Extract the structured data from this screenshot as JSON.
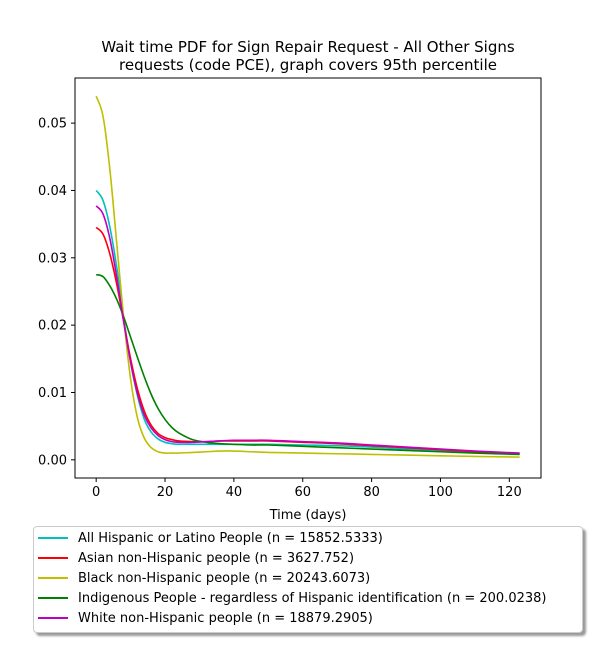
{
  "chart_data": {
    "type": "line",
    "title": "Wait time PDF for Sign Repair Request - All Other Signs requests (code PCE), graph covers 95th percentile",
    "title_lines": [
      "Wait time PDF for Sign Repair Request - All Other Signs",
      "requests (code PCE), graph covers 95th percentile"
    ],
    "xlabel": "Time (days)",
    "ylabel": "",
    "xlim": [
      -6.15,
      129.2
    ],
    "ylim": [
      -0.0027,
      0.0567
    ],
    "xticks": [
      0,
      20,
      40,
      60,
      80,
      100,
      120
    ],
    "yticks": [
      0.0,
      0.01,
      0.02,
      0.03,
      0.04,
      0.05
    ],
    "ytick_labels": [
      "0.00",
      "0.01",
      "0.02",
      "0.03",
      "0.04",
      "0.05"
    ],
    "grid": false,
    "legend_position": "below",
    "series": [
      {
        "name": "All Hispanic or Latino People (n = 15852.5333)",
        "color": "#00bfbf",
        "x": [
          0,
          2,
          4,
          6,
          8,
          10,
          12,
          14,
          16,
          18,
          20,
          22,
          24,
          28,
          32,
          36,
          40,
          45,
          50,
          60,
          70,
          80,
          90,
          100,
          110,
          123
        ],
        "y": [
          0.04,
          0.0385,
          0.0345,
          0.0285,
          0.021,
          0.0145,
          0.0095,
          0.006,
          0.0041,
          0.0031,
          0.0026,
          0.0024,
          0.0023,
          0.0023,
          0.0023,
          0.0023,
          0.0023,
          0.0023,
          0.0023,
          0.0022,
          0.0021,
          0.0019,
          0.0016,
          0.0014,
          0.0012,
          0.0009
        ]
      },
      {
        "name": "Asian non-Hispanic people (n = 3627.752)",
        "color": "#ff0000",
        "x": [
          0,
          2,
          4,
          6,
          8,
          10,
          12,
          14,
          16,
          18,
          20,
          22,
          24,
          28,
          32,
          36,
          40,
          45,
          50,
          60,
          70,
          80,
          90,
          100,
          110,
          123
        ],
        "y": [
          0.0345,
          0.0335,
          0.0305,
          0.026,
          0.0205,
          0.015,
          0.0105,
          0.0072,
          0.0051,
          0.0039,
          0.0033,
          0.003,
          0.0028,
          0.0027,
          0.0027,
          0.0028,
          0.0028,
          0.0028,
          0.0028,
          0.0026,
          0.0024,
          0.0021,
          0.0018,
          0.0015,
          0.0012,
          0.0009
        ]
      },
      {
        "name": "Black non-Hispanic people (n = 20243.6073)",
        "color": "#bfbf00",
        "x": [
          0,
          2,
          4,
          6,
          8,
          10,
          12,
          14,
          16,
          18,
          20,
          22,
          24,
          28,
          32,
          36,
          40,
          45,
          50,
          60,
          70,
          80,
          90,
          100,
          110,
          123
        ],
        "y": [
          0.054,
          0.051,
          0.043,
          0.032,
          0.021,
          0.012,
          0.0062,
          0.0032,
          0.0018,
          0.0012,
          0.001,
          0.001,
          0.001,
          0.0011,
          0.0012,
          0.0013,
          0.0013,
          0.0012,
          0.0011,
          0.001,
          0.0009,
          0.0008,
          0.0007,
          0.0006,
          0.0005,
          0.0004
        ]
      },
      {
        "name": "Indigenous People - regardless of Hispanic identification (n = 200.0238)",
        "color": "#008000",
        "x": [
          0,
          2,
          4,
          6,
          8,
          10,
          12,
          14,
          16,
          18,
          20,
          22,
          24,
          28,
          32,
          36,
          40,
          45,
          50,
          60,
          70,
          80,
          90,
          100,
          110,
          123
        ],
        "y": [
          0.0275,
          0.0272,
          0.0258,
          0.0238,
          0.0212,
          0.0182,
          0.0152,
          0.0123,
          0.0097,
          0.0076,
          0.006,
          0.0048,
          0.004,
          0.003,
          0.0026,
          0.0024,
          0.0023,
          0.0022,
          0.0022,
          0.002,
          0.0018,
          0.0016,
          0.0014,
          0.0012,
          0.001,
          0.0008
        ]
      },
      {
        "name": "White non-Hispanic people (n = 18879.2905)",
        "color": "#bf00bf",
        "x": [
          0,
          2,
          4,
          6,
          8,
          10,
          12,
          14,
          16,
          18,
          20,
          22,
          24,
          28,
          32,
          36,
          40,
          45,
          50,
          60,
          70,
          80,
          90,
          100,
          110,
          123
        ],
        "y": [
          0.0377,
          0.0365,
          0.0328,
          0.027,
          0.0205,
          0.0145,
          0.0098,
          0.0066,
          0.0047,
          0.0036,
          0.003,
          0.0027,
          0.0026,
          0.0026,
          0.0027,
          0.0028,
          0.0029,
          0.0029,
          0.0029,
          0.0027,
          0.0025,
          0.0022,
          0.0019,
          0.0016,
          0.0013,
          0.001
        ]
      }
    ]
  }
}
